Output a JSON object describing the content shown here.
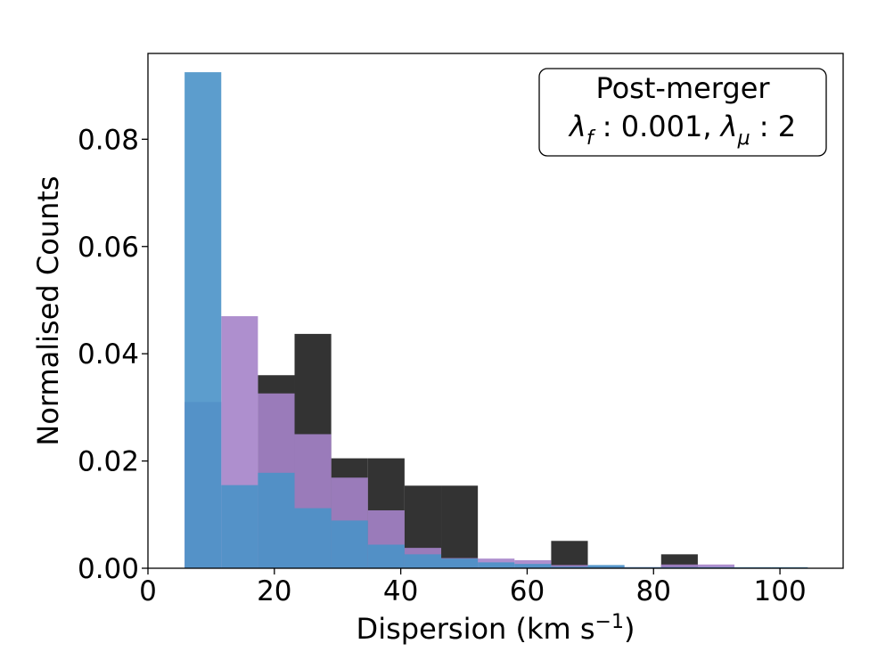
{
  "chart_data": {
    "type": "bar",
    "xlabel": "Dispersion (km s",
    "xlabel_sup": "−1",
    "xlabel_close": ")",
    "ylabel": "Normalised Counts",
    "xlim": [
      0,
      110
    ],
    "ylim": [
      0,
      0.096
    ],
    "xticks": [
      0,
      20,
      40,
      60,
      80,
      100
    ],
    "xtick_labels": [
      "0",
      "20",
      "40",
      "60",
      "80",
      "100"
    ],
    "yticks": [
      0.0,
      0.02,
      0.04,
      0.06,
      0.08
    ],
    "ytick_labels": [
      "0.00",
      "0.02",
      "0.04",
      "0.06",
      "0.08"
    ],
    "grid": false,
    "bin_edges": [
      5.8,
      11.6,
      17.4,
      23.2,
      29.0,
      34.8,
      40.6,
      46.4,
      52.2,
      58.0,
      63.8,
      69.6,
      75.4,
      81.2,
      87.0,
      92.8,
      98.6,
      104.4
    ],
    "series": [
      {
        "color": "#333333",
        "values": [
          0.0,
          0.0,
          0.036,
          0.0437,
          0.0205,
          0.0205,
          0.0154,
          0.0154,
          0.0,
          0.0,
          0.0051,
          0.0,
          0.0,
          0.0026,
          0.0,
          0.0,
          0.0
        ]
      },
      {
        "color": "#a583c9",
        "values": [
          0.031,
          0.047,
          0.0326,
          0.025,
          0.0169,
          0.0108,
          0.0038,
          0.0019,
          0.0018,
          0.0015,
          0.0006,
          0.0004,
          0.0002,
          0.0007,
          0.0007,
          0.0001,
          0.0
        ]
      },
      {
        "color": "#4a92c8",
        "values": [
          0.0925,
          0.0155,
          0.0178,
          0.0112,
          0.0089,
          0.0044,
          0.0026,
          0.0018,
          0.0011,
          0.0008,
          0.0003,
          0.0006,
          0.0002,
          0.0002,
          0.0002,
          0.0002,
          0.0002
        ]
      }
    ],
    "annotation": {
      "title": "Post-merger",
      "lambda_f_label": "λ",
      "lambda_f_sub": "f",
      "lambda_f_value": " : 0.001, ",
      "lambda_mu_label": "λ",
      "lambda_mu_sub": "μ",
      "lambda_mu_value": " : 2",
      "placement": "top-right"
    }
  }
}
